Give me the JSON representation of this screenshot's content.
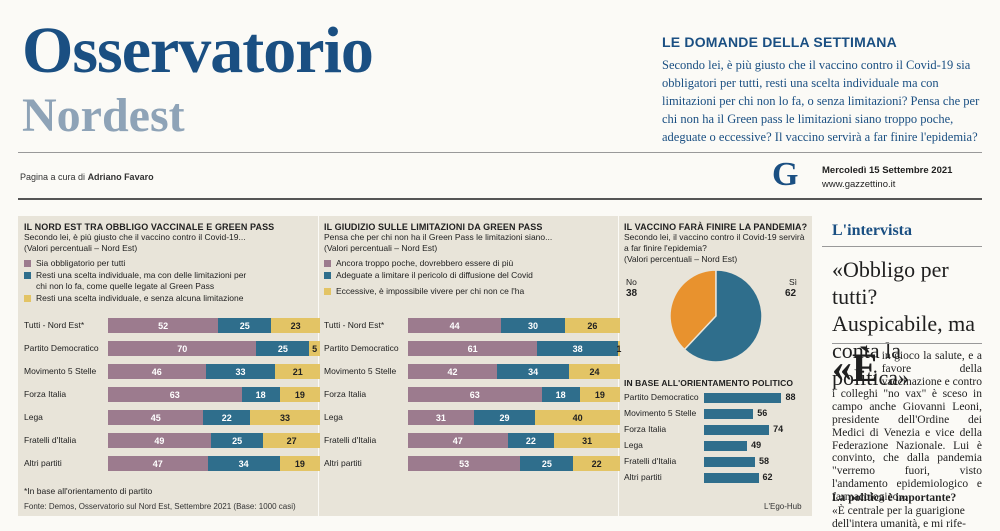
{
  "masthead": {
    "title": "Osservatorio",
    "subtitle": "Nordest"
  },
  "questions": {
    "heading": "LE DOMANDE DELLA SETTIMANA",
    "text": "Secondo lei, è più giusto che il vaccino contro il Covid-19 sia obbligatori per tutti, resti una scelta individuale ma con limitazioni per chi non lo fa, o senza limitazioni? Pensa che per chi non ha il Green pass le limitazioni siano troppo poche, adeguate o eccessive? Il vaccino servirà a far finire l'epidemia?"
  },
  "credit": {
    "prefix": "Pagina a cura di",
    "name": "Adriano Favaro"
  },
  "brand": {
    "logo": "G",
    "date": "Mercoledì 15 Settembre 2021",
    "site": "www.gazzettino.it"
  },
  "colors": {
    "purple": "#9c7b8e",
    "teal": "#2f6e8c",
    "yellow": "#e3c465",
    "orange": "#e8922e",
    "brand": "#1a4f82"
  },
  "chart_data": [
    {
      "type": "bar",
      "title": "IL NORD EST TRA OBBLIGO VACCINALE E GREEN PASS",
      "subtitle": "Secondo lei, è più giusto che il vaccino contro il Covid-19...",
      "unit_note": "(Valori percentuali – Nord Est)",
      "stacked": true,
      "orientation": "horizontal",
      "categories": [
        "Tutti - Nord Est*",
        "Partito Democratico",
        "Movimento 5 Stelle",
        "Forza Italia",
        "Lega",
        "Fratelli d'Italia",
        "Altri partiti"
      ],
      "series": [
        {
          "name": "Sia obbligatorio per tutti",
          "values": [
            52,
            70,
            46,
            63,
            45,
            49,
            47
          ]
        },
        {
          "name": "Resti una scelta individuale, ma con delle limitazioni per chi non lo fa, come quelle legate al Green Pass",
          "values": [
            25,
            25,
            33,
            18,
            22,
            25,
            34
          ]
        },
        {
          "name": "Resti una scelta individuale, e senza alcuna limitazione",
          "values": [
            23,
            5,
            21,
            19,
            33,
            27,
            19
          ]
        }
      ],
      "note": "*In base all'orientamento di partito"
    },
    {
      "type": "bar",
      "title": "IL GIUDIZIO SULLE LIMITAZIONI DA GREEN PASS",
      "subtitle": "Pensa che per chi non ha il Green Pass le limitazioni siano...",
      "unit_note": "(Valori percentuali – Nord Est)",
      "stacked": true,
      "orientation": "horizontal",
      "categories": [
        "Tutti - Nord Est*",
        "Partito Democratico",
        "Movimento 5 Stelle",
        "Forza Italia",
        "Lega",
        "Fratelli d'Italia",
        "Altri partiti"
      ],
      "series": [
        {
          "name": "Ancora troppo poche, dovrebbero essere di più",
          "values": [
            44,
            61,
            42,
            63,
            31,
            47,
            53
          ]
        },
        {
          "name": "Adeguate a limitare il pericolo di diffusione del Covid",
          "values": [
            30,
            38,
            34,
            18,
            29,
            22,
            25
          ]
        },
        {
          "name": "Eccessive, è impossibile vivere per chi non ce l'ha",
          "values": [
            26,
            1,
            24,
            19,
            40,
            31,
            22
          ]
        }
      ]
    },
    {
      "type": "pie",
      "title": "IL VACCINO FARÀ FINIRE LA PANDEMIA?",
      "subtitle": "Secondo lei, il vaccino contro il Covid-19 servirà a far finire l'epidemia?",
      "unit_note": "(Valori percentuali – Nord Est)",
      "labels": [
        "No",
        "Sì"
      ],
      "values": [
        38,
        62
      ]
    },
    {
      "type": "bar",
      "title": "IN BASE ALL'ORIENTAMENTO POLITICO",
      "orientation": "horizontal",
      "categories": [
        "Partito Democratico",
        "Movimento 5 Stelle",
        "Forza Italia",
        "Lega",
        "Fratelli d'Italia",
        "Altri partiti"
      ],
      "values": [
        88,
        56,
        74,
        49,
        58,
        62
      ]
    }
  ],
  "source": "Fonte: Demos, Osservatorio sul Nord Est, Settembre 2021 (Base: 1000 casi)",
  "graphics_credit": "L'Ego-Hub",
  "interview": {
    "header": "L'intervista",
    "headline": "«Obbligo per tutti? Auspicabile, ma conta la politica»",
    "dropcap": "«È",
    "body": "in gioco la salute, e a favore della vaccinazione e contro i colleghi \"no vax\" è sceso in campo anche Giovanni Leoni, presidente dell'Ordine dei Medici di Venezia e vice della Federazione Nazionale. Lui è convinto, che dalla pandemia \"verremo fuori, visto l'andamento epidemiologico e farmacologico».",
    "subhead": "La politica è importante?",
    "body2": "«È centrale per la guarigione dell'intera umanità, e mi rife-"
  }
}
